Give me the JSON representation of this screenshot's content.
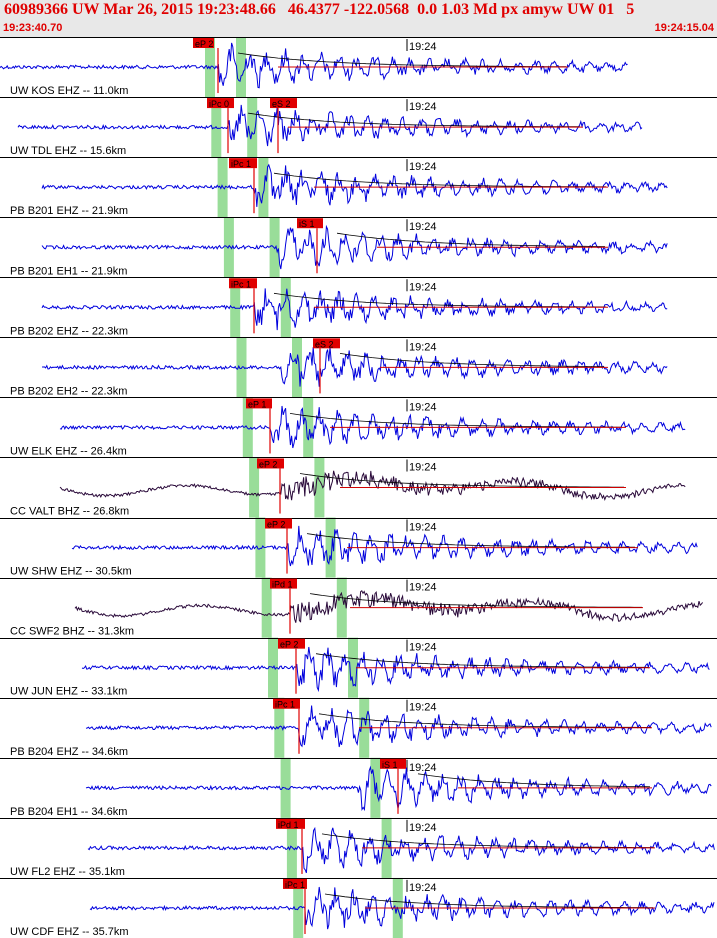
{
  "header": {
    "title": "60989366 UW Mar 26, 2015 19:23:48.66   46.4377 -122.0568  0.0 1.03 Md px amyw UW 01   5",
    "time_start": "19:23:40.70",
    "time_end": "19:24:15.04",
    "minute_label": "19:24"
  },
  "colors": {
    "trace_short_period": "#0000dd",
    "trace_broadband": "#2a0a3a",
    "pick_box": "#e00000",
    "pick_band": "#99dd99",
    "coda_fit": "#d00000",
    "travel_time_curve": "#000000",
    "header_bg": "#e8e8e8",
    "header_text": "#e00000"
  },
  "traces": [
    {
      "station": "UW KOS EHZ -- 11.0km",
      "p_pick": "eP 2",
      "s_pick": "",
      "broadband": false
    },
    {
      "station": "UW TDL EHZ -- 15.6km",
      "p_pick": "iPc 0",
      "s_pick": "eS 2",
      "broadband": false
    },
    {
      "station": "PB B201 EHZ -- 21.9km",
      "p_pick": "iPc 1",
      "s_pick": "",
      "broadband": false
    },
    {
      "station": "PB B201 EH1 -- 21.9km",
      "p_pick": "",
      "s_pick": "iS 1",
      "broadband": false
    },
    {
      "station": "PB B202 EHZ -- 22.3km",
      "p_pick": "iPc 1",
      "s_pick": "",
      "broadband": false
    },
    {
      "station": "PB B202 EH2 -- 22.3km",
      "p_pick": "",
      "s_pick": "eS 2",
      "broadband": false
    },
    {
      "station": "UW ELK EHZ -- 26.4km",
      "p_pick": "eP 1",
      "s_pick": "",
      "broadband": false
    },
    {
      "station": "CC VALT BHZ -- 26.8km",
      "p_pick": "eP 2",
      "s_pick": "",
      "broadband": true
    },
    {
      "station": "UW SHW EHZ -- 30.5km",
      "p_pick": "eP 2",
      "s_pick": "",
      "broadband": false
    },
    {
      "station": "CC SWF2 BHZ -- 31.3km",
      "p_pick": "iPd 1",
      "s_pick": "",
      "broadband": true
    },
    {
      "station": "UW JUN EHZ -- 33.1km",
      "p_pick": "eP 2",
      "s_pick": "",
      "broadband": false
    },
    {
      "station": "PB B204 EHZ -- 34.6km",
      "p_pick": "iPc 1",
      "s_pick": "",
      "broadband": false
    },
    {
      "station": "PB B204 EH1 -- 34.6km",
      "p_pick": "",
      "s_pick": "iS 1",
      "broadband": false
    },
    {
      "station": "UW FL2 EHZ -- 35.1km",
      "p_pick": "iPd 1",
      "s_pick": "",
      "broadband": false
    },
    {
      "station": "UW CDF EHZ -- 35.7km",
      "p_pick": "iPc 1",
      "s_pick": "",
      "broadband": false
    }
  ]
}
